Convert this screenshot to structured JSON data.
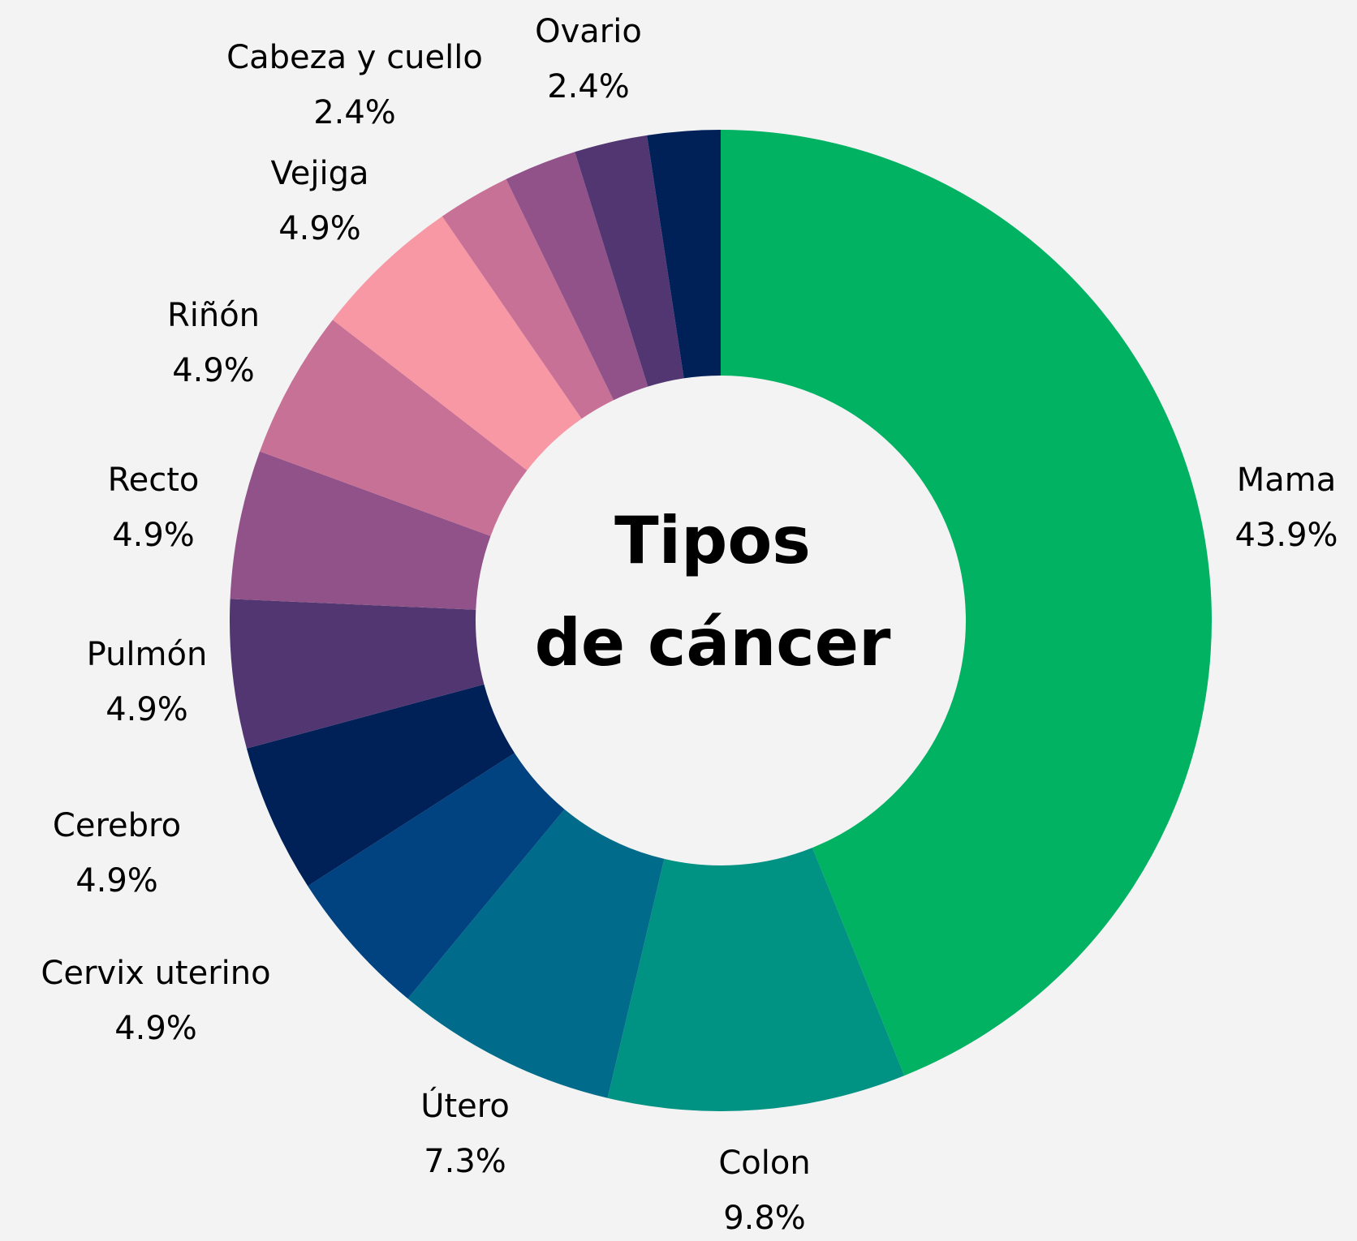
{
  "chart_data": {
    "type": "donut",
    "title": [
      "Tipos",
      "de cáncer"
    ],
    "categories": [
      "Mama",
      "Colon",
      "Útero",
      "Cervix uterino",
      "Cerebro",
      "Pulmón",
      "Recto",
      "Riñón",
      "Vejiga",
      null,
      "Cabeza y cuello",
      "Ovario",
      null
    ],
    "values": [
      43.9,
      9.8,
      7.3,
      4.9,
      4.9,
      4.9,
      4.9,
      4.9,
      4.9,
      2.4,
      2.4,
      2.4,
      2.4
    ],
    "value_labels": [
      "43.9%",
      "9.8%",
      "7.3%",
      "4.9%",
      "4.9%",
      "4.9%",
      "4.9%",
      "4.9%",
      "4.9%",
      null,
      "2.4%",
      "2.4%",
      null
    ],
    "colors": [
      "#00b262",
      "#009282",
      "#006b8a",
      "#004380",
      "#002058",
      "#523672",
      "#905288",
      "#c87196",
      "#f898a4",
      "#c87196",
      "#905288",
      "#523672",
      "#002058"
    ]
  }
}
